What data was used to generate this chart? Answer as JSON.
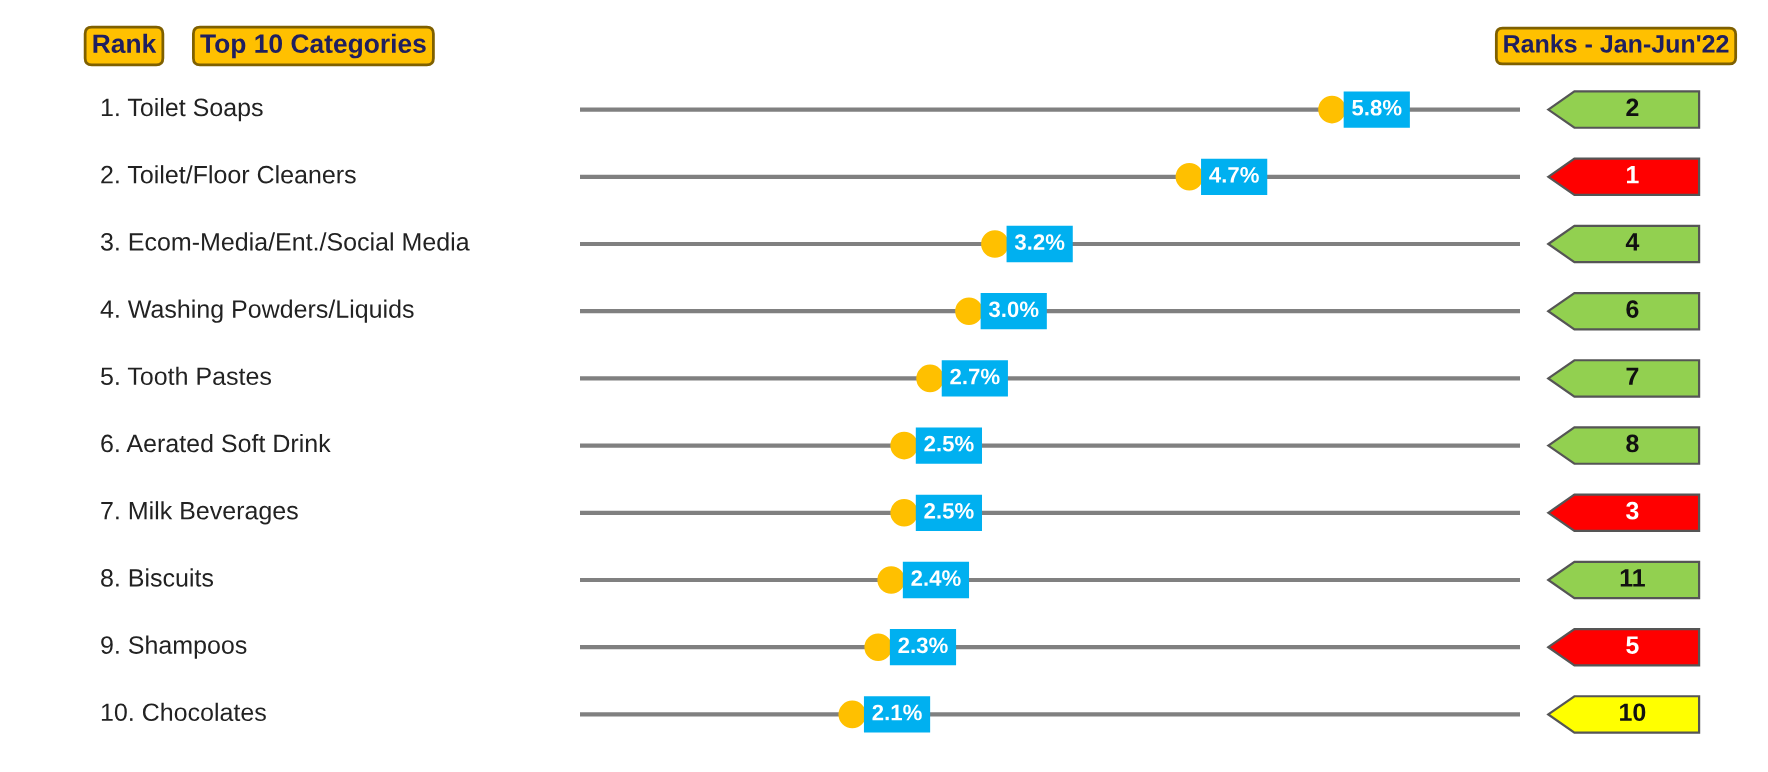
{
  "chart_data": [
    {
      "type": "lollipop",
      "orientation": "horizontal",
      "title": "Top 10 Categories",
      "ylabel": "Rank",
      "marker": "circle",
      "color": "#ffc000",
      "grid": "y",
      "categories": [
        "1. Toilet Soaps",
        "2. Toilet/Floor Cleaners",
        "3. Ecom-Media/Ent./Social Media",
        "4. Washing Powders/Liquids",
        "5. Tooth Pastes",
        "6. Aerated Soft Drink",
        "7. Milk Beverages",
        "8. Biscuits",
        "9. Shampoos",
        "10. Chocolates"
      ],
      "values": [
        5.8,
        4.7,
        3.2,
        3.0,
        2.7,
        2.5,
        2.5,
        2.4,
        2.3,
        2.1
      ],
      "value_labels": [
        "5.8%",
        "4.7%",
        "3.2%",
        "3.0%",
        "2.7%",
        "2.5%",
        "2.5%",
        "2.4%",
        "2.3%",
        "2.1%"
      ]
    },
    {
      "type": "other",
      "title": "Ranks - Jan-Jun'22",
      "annotations": [
        "2",
        "1",
        "4",
        "6",
        "7",
        "8",
        "3",
        "11",
        "5",
        "10"
      ],
      "colors": [
        "#92d050",
        "#ff0000",
        "#92d050",
        "#92d050",
        "#92d050",
        "#92d050",
        "#ff0000",
        "#92d050",
        "#ff0000",
        "#ffff00"
      ]
    }
  ]
}
